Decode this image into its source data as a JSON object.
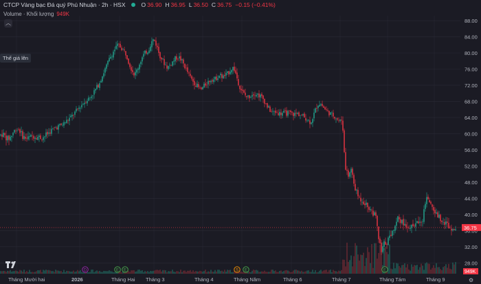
{
  "header": {
    "title": "CTCP Vàng bạc Đá quý Phú Nhuận · 2h · HSX",
    "open_label": "O",
    "open": "36.90",
    "high_label": "H",
    "high": "36.95",
    "low_label": "L",
    "low": "36.50",
    "close_label": "C",
    "close": "36.75",
    "change": "−0.15 (−0.41%)"
  },
  "volume": {
    "label": "Volume · Khối lượng",
    "value": "949K"
  },
  "tooltip": "Thế giá lên",
  "colors": {
    "up": "#22ab94",
    "down": "#f23645",
    "background": "#1b1b24",
    "grid": "#2a2a35",
    "text": "#b2b5be"
  },
  "chart_data": {
    "type": "candlestick",
    "yaxis_ticks": [
      28,
      32,
      36,
      40,
      44,
      48,
      52,
      56,
      60,
      64,
      68,
      72,
      76,
      80,
      84,
      88
    ],
    "ylim": [
      26.6,
      89.2
    ],
    "xaxis_ticks": [
      "Tháng Mười hai",
      "2026",
      "Tháng Hai",
      "Tháng 3",
      "Tháng 4",
      "Tháng Năm",
      "Tháng 6",
      "Tháng 7",
      "Tháng Tám",
      "Tháng 9"
    ],
    "last_price": "36.75",
    "last_volume": "949K",
    "price_path": [
      [
        0,
        59.6
      ],
      [
        4,
        60.0
      ],
      [
        8,
        59.2
      ],
      [
        12,
        58.6
      ],
      [
        16,
        59.4
      ],
      [
        20,
        60.5
      ],
      [
        23,
        61.2
      ],
      [
        28,
        61.0
      ],
      [
        32,
        59.6
      ],
      [
        36,
        59.0
      ],
      [
        40,
        58.8
      ],
      [
        44,
        59.1
      ],
      [
        48,
        59.5
      ],
      [
        52,
        59.4
      ],
      [
        56,
        59.2
      ],
      [
        60,
        59.0
      ],
      [
        64,
        59.3
      ],
      [
        68,
        59.8
      ],
      [
        72,
        60.4
      ],
      [
        76,
        61.0
      ],
      [
        80,
        61.4
      ],
      [
        84,
        61.8
      ],
      [
        88,
        62.0
      ],
      [
        92,
        62.4
      ],
      [
        96,
        63.0
      ],
      [
        100,
        63.6
      ],
      [
        104,
        64.2
      ],
      [
        108,
        65.0
      ],
      [
        112,
        65.8
      ],
      [
        116,
        66.6
      ],
      [
        120,
        67.4
      ],
      [
        124,
        68.0
      ],
      [
        128,
        68.6
      ],
      [
        132,
        69.2
      ],
      [
        136,
        70.2
      ],
      [
        140,
        71.2
      ],
      [
        144,
        72.4
      ],
      [
        148,
        74.0
      ],
      [
        152,
        75.6
      ],
      [
        156,
        77.2
      ],
      [
        160,
        78.8
      ],
      [
        164,
        80.0
      ],
      [
        168,
        81.2
      ],
      [
        172,
        82.0
      ],
      [
        176,
        81.4
      ],
      [
        180,
        80.6
      ],
      [
        184,
        79.6
      ],
      [
        188,
        77.4
      ],
      [
        192,
        75.8
      ],
      [
        196,
        74.6
      ],
      [
        200,
        76.0
      ],
      [
        204,
        77.8
      ],
      [
        208,
        79.2
      ],
      [
        212,
        80.2
      ],
      [
        216,
        80.6
      ],
      [
        220,
        82.6
      ],
      [
        224,
        83.4
      ],
      [
        228,
        81.8
      ],
      [
        232,
        79.6
      ],
      [
        236,
        78.4
      ],
      [
        240,
        77.2
      ],
      [
        244,
        76.4
      ],
      [
        248,
        77.2
      ],
      [
        252,
        78.0
      ],
      [
        256,
        78.8
      ],
      [
        260,
        79.0
      ],
      [
        264,
        78.2
      ],
      [
        268,
        77.0
      ],
      [
        272,
        75.6
      ],
      [
        276,
        74.2
      ],
      [
        280,
        73.2
      ],
      [
        284,
        72.4
      ],
      [
        288,
        71.6
      ],
      [
        292,
        70.8
      ],
      [
        296,
        71.6
      ],
      [
        300,
        72.4
      ],
      [
        304,
        73.0
      ],
      [
        308,
        73.6
      ],
      [
        312,
        73.4
      ],
      [
        316,
        74.0
      ],
      [
        320,
        74.6
      ],
      [
        324,
        74.0
      ],
      [
        328,
        74.4
      ],
      [
        332,
        75.0
      ],
      [
        336,
        76.0
      ],
      [
        340,
        76.4
      ],
      [
        344,
        74.4
      ],
      [
        348,
        72.0
      ],
      [
        352,
        70.6
      ],
      [
        356,
        69.6
      ],
      [
        360,
        69.0
      ],
      [
        364,
        69.4
      ],
      [
        368,
        70.0
      ],
      [
        372,
        70.0
      ],
      [
        376,
        69.6
      ],
      [
        380,
        69.2
      ],
      [
        384,
        68.4
      ],
      [
        388,
        67.0
      ],
      [
        392,
        66.0
      ],
      [
        396,
        65.2
      ],
      [
        400,
        65.4
      ],
      [
        404,
        65.2
      ],
      [
        408,
        65.0
      ],
      [
        412,
        65.2
      ],
      [
        416,
        65.0
      ],
      [
        420,
        65.2
      ],
      [
        424,
        65.0
      ],
      [
        428,
        64.8
      ],
      [
        432,
        65.0
      ],
      [
        436,
        64.8
      ],
      [
        440,
        64.4
      ],
      [
        444,
        64.0
      ],
      [
        448,
        63.4
      ],
      [
        452,
        62.8
      ],
      [
        456,
        64.4
      ],
      [
        460,
        66.4
      ],
      [
        464,
        67.6
      ],
      [
        468,
        67.2
      ],
      [
        472,
        66.2
      ],
      [
        476,
        65.6
      ],
      [
        480,
        65.0
      ],
      [
        484,
        64.6
      ],
      [
        488,
        64.2
      ],
      [
        492,
        63.4
      ],
      [
        496,
        63.0
      ],
      [
        498,
        63.8
      ],
      [
        500,
        58.6
      ],
      [
        503,
        51.0
      ],
      [
        507,
        49.4
      ],
      [
        511,
        51.2
      ],
      [
        515,
        47.6
      ],
      [
        519,
        45.4
      ],
      [
        523,
        44.0
      ],
      [
        527,
        43.6
      ],
      [
        531,
        42.8
      ],
      [
        535,
        42.0
      ],
      [
        539,
        41.4
      ],
      [
        543,
        40.4
      ],
      [
        547,
        39.2
      ],
      [
        551,
        34.0
      ],
      [
        555,
        30.6
      ],
      [
        559,
        32.8
      ],
      [
        563,
        33.2
      ],
      [
        567,
        34.4
      ],
      [
        571,
        35.8
      ],
      [
        575,
        37.4
      ],
      [
        579,
        39.4
      ],
      [
        583,
        38.6
      ],
      [
        587,
        37.6
      ],
      [
        591,
        37.4
      ],
      [
        595,
        37.2
      ],
      [
        599,
        36.8
      ],
      [
        603,
        37.4
      ],
      [
        607,
        37.8
      ],
      [
        611,
        38.6
      ],
      [
        615,
        38.8
      ],
      [
        619,
        43.0
      ],
      [
        623,
        44.2
      ],
      [
        627,
        42.4
      ],
      [
        631,
        41.2
      ],
      [
        635,
        40.0
      ],
      [
        639,
        39.4
      ],
      [
        643,
        38.8
      ],
      [
        647,
        38.0
      ],
      [
        651,
        37.6
      ],
      [
        655,
        36.6
      ],
      [
        659,
        37.0
      ],
      [
        663,
        36.75
      ]
    ]
  },
  "events": {
    "dividends_label": "D",
    "earnings_label": "E",
    "splits_label": "S",
    "list": [
      "D",
      "E",
      "E",
      "S",
      "E",
      "E"
    ]
  }
}
